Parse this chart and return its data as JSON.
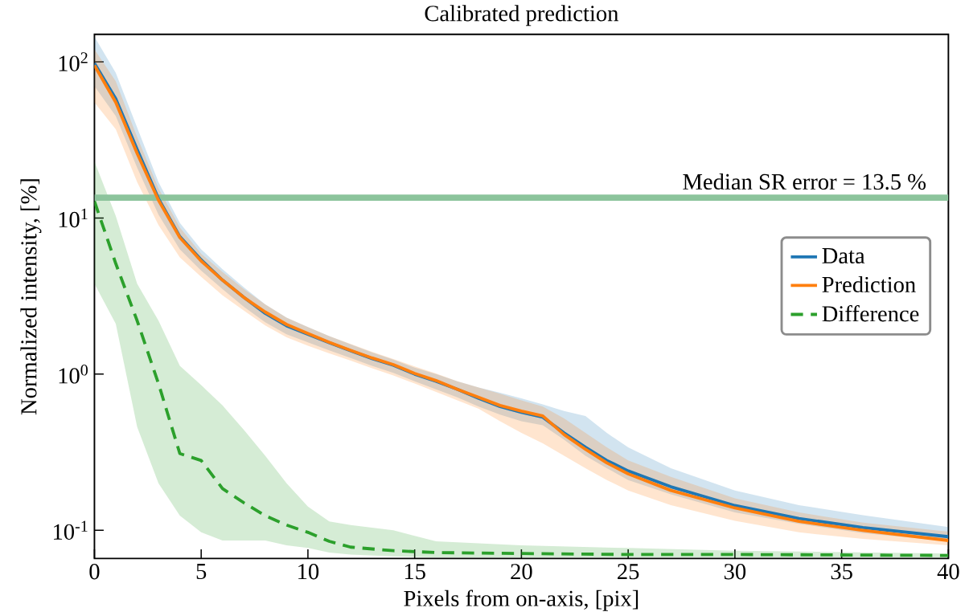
{
  "chart_data": {
    "type": "line",
    "title": "Calibrated prediction",
    "xlabel": "Pixels from on-axis, [pix]",
    "ylabel": "Normalized intensity, [%]",
    "series": [
      {
        "name": "Data",
        "color": "#1f77b4",
        "line_style": "solid",
        "x": [
          0,
          1,
          2,
          3,
          4,
          5,
          6,
          7,
          8,
          9,
          10,
          11,
          12,
          13,
          14,
          15,
          16,
          17,
          18,
          19,
          20,
          21,
          22,
          23,
          24,
          25,
          27,
          30,
          33,
          36,
          40
        ],
        "values": [
          98,
          58,
          27.5,
          13.3,
          7.6,
          5.4,
          4.0,
          3.1,
          2.45,
          2.04,
          1.8,
          1.59,
          1.41,
          1.26,
          1.14,
          1.0,
          0.9,
          0.8,
          0.7,
          0.62,
          0.57,
          0.53,
          0.42,
          0.34,
          0.28,
          0.24,
          0.19,
          0.144,
          0.119,
          0.104,
          0.091
        ],
        "upper": [
          145,
          85,
          38,
          17,
          9.3,
          6.3,
          4.7,
          3.6,
          2.8,
          2.3,
          2.0,
          1.75,
          1.55,
          1.38,
          1.24,
          1.1,
          1.0,
          0.9,
          0.82,
          0.76,
          0.7,
          0.64,
          0.58,
          0.54,
          0.42,
          0.34,
          0.25,
          0.18,
          0.145,
          0.125,
          0.105
        ],
        "lower": [
          70,
          45,
          21,
          10.5,
          6.3,
          4.6,
          3.5,
          2.7,
          2.15,
          1.8,
          1.6,
          1.42,
          1.27,
          1.13,
          1.02,
          0.9,
          0.8,
          0.71,
          0.62,
          0.55,
          0.5,
          0.47,
          0.38,
          0.3,
          0.25,
          0.21,
          0.17,
          0.13,
          0.11,
          0.096,
          0.085
        ]
      },
      {
        "name": "Prediction",
        "color": "#ff7f0e",
        "line_style": "solid",
        "x": [
          0,
          1,
          2,
          3,
          4,
          5,
          6,
          7,
          8,
          9,
          10,
          11,
          12,
          13,
          14,
          15,
          16,
          17,
          18,
          19,
          20,
          21,
          22,
          23,
          24,
          25,
          27,
          30,
          33,
          36,
          40
        ],
        "values": [
          95,
          55,
          25.9,
          13.0,
          7.5,
          5.3,
          4.0,
          3.1,
          2.5,
          2.08,
          1.82,
          1.6,
          1.42,
          1.27,
          1.15,
          1.01,
          0.91,
          0.8,
          0.71,
          0.63,
          0.58,
          0.54,
          0.41,
          0.33,
          0.27,
          0.23,
          0.18,
          0.139,
          0.114,
          0.1,
          0.086
        ],
        "upper": [
          120,
          75,
          33,
          15.5,
          8.7,
          5.9,
          4.5,
          3.5,
          2.8,
          2.3,
          2.0,
          1.75,
          1.56,
          1.39,
          1.25,
          1.12,
          1.01,
          0.9,
          0.82,
          0.75,
          0.68,
          0.62,
          0.52,
          0.42,
          0.34,
          0.28,
          0.22,
          0.16,
          0.13,
          0.112,
          0.098
        ],
        "lower": [
          55,
          37,
          17,
          9,
          5.6,
          4.2,
          3.2,
          2.55,
          2.05,
          1.72,
          1.52,
          1.36,
          1.22,
          1.09,
          0.98,
          0.87,
          0.77,
          0.68,
          0.6,
          0.5,
          0.42,
          0.36,
          0.3,
          0.25,
          0.21,
          0.18,
          0.145,
          0.115,
          0.097,
          0.088,
          0.08
        ]
      },
      {
        "name": "Difference",
        "color": "#2ca02c",
        "line_style": "dashed",
        "x": [
          0,
          1,
          2,
          3,
          4,
          5,
          6,
          7,
          8,
          9,
          10,
          11,
          12,
          14,
          16,
          20,
          25,
          30,
          40
        ],
        "values": [
          12.8,
          5.1,
          2.2,
          0.87,
          0.31,
          0.28,
          0.185,
          0.15,
          0.124,
          0.108,
          0.097,
          0.085,
          0.078,
          0.074,
          0.072,
          0.071,
          0.07,
          0.07,
          0.069
        ],
        "upper": [
          23,
          10.3,
          3.8,
          2.2,
          1.13,
          0.85,
          0.63,
          0.44,
          0.3,
          0.2,
          0.142,
          0.114,
          0.108,
          0.1,
          0.085,
          0.08,
          0.077,
          0.074,
          0.071
        ],
        "lower": [
          3.8,
          2.1,
          0.46,
          0.2,
          0.124,
          0.097,
          0.086,
          0.086,
          0.086,
          0.08,
          0.077,
          0.072,
          0.07,
          0.068,
          0.067,
          0.067,
          0.067,
          0.067,
          0.067
        ]
      }
    ],
    "xlim": [
      0,
      40
    ],
    "xticks": [
      0,
      5,
      10,
      15,
      20,
      25,
      30,
      35,
      40
    ],
    "ylim": [
      0.066,
      150
    ],
    "yticks": [
      {
        "value": 0.1,
        "label": "10$^{-1}$"
      },
      {
        "value": 1,
        "label": "10$^{0}$"
      },
      {
        "value": 10,
        "label": "10$^{1}$"
      },
      {
        "value": 100,
        "label": "10$^{2}$"
      }
    ],
    "log": "y",
    "legend": "right",
    "ref_lines": [
      {
        "axis": "y",
        "value": 13.5,
        "label": "Median SR error = 13.5 %",
        "color": "#8cc49c"
      }
    ]
  }
}
